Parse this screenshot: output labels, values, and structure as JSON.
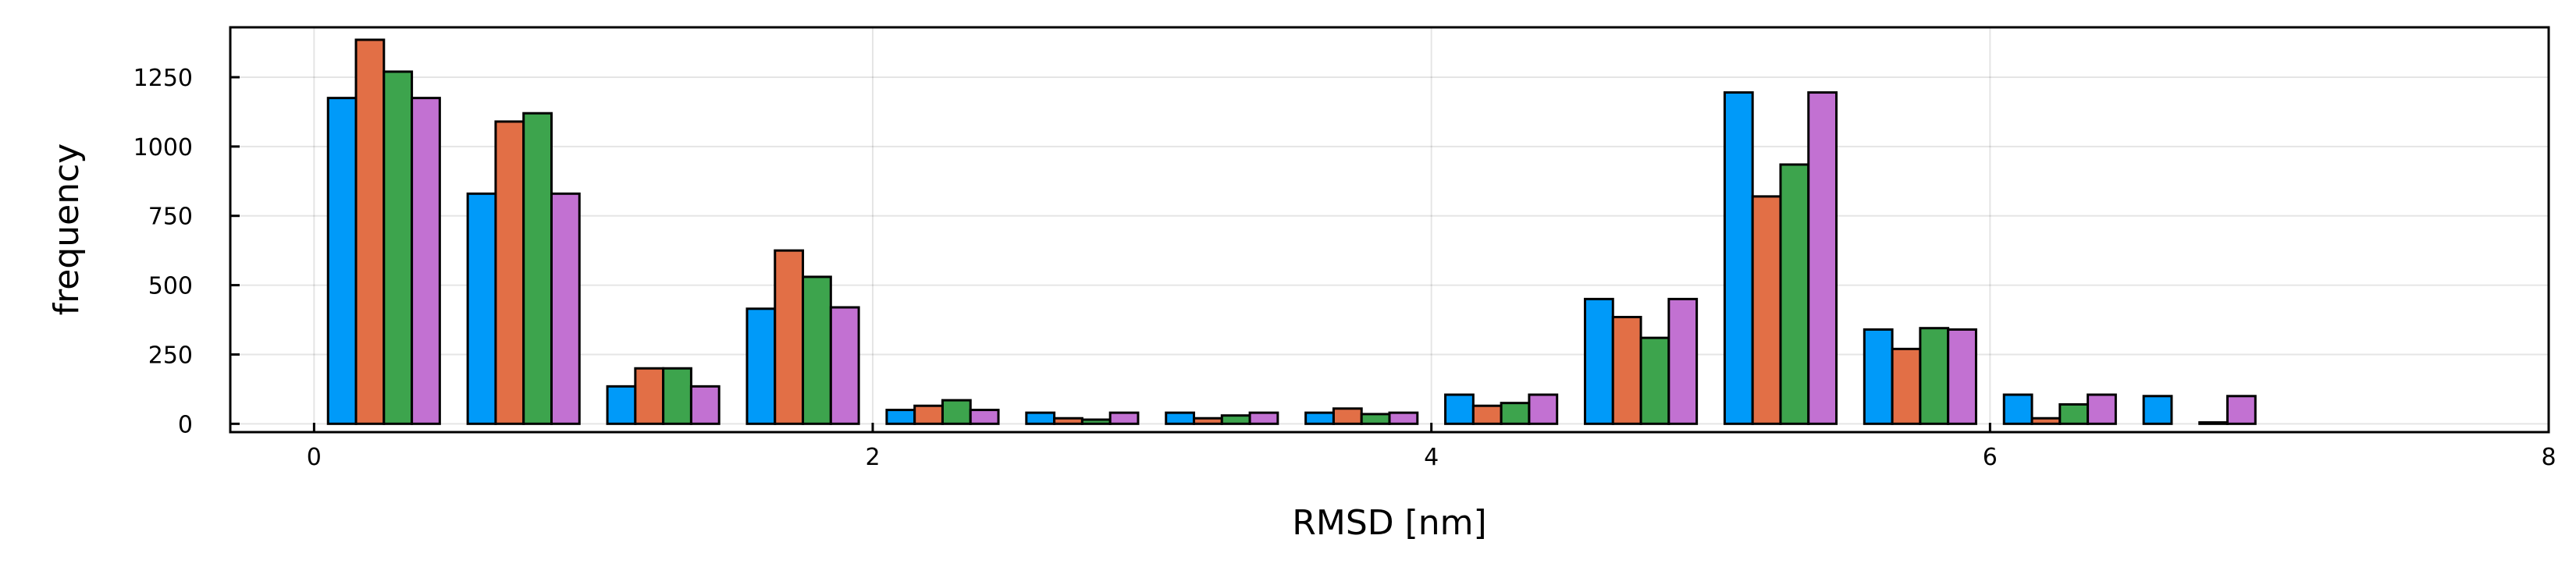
{
  "chart_data": {
    "type": "bar",
    "title": "",
    "xlabel": "RMSD [nm]",
    "ylabel": "frequency",
    "xlim": [
      -0.3,
      8
    ],
    "ylim": [
      -30,
      1430
    ],
    "xticks": [
      0,
      2,
      4,
      6,
      8
    ],
    "xtick_labels": [
      "0",
      "2",
      "4",
      "6",
      "8"
    ],
    "yticks": [
      0,
      250,
      500,
      750,
      1000,
      1250
    ],
    "ytick_labels": [
      "0",
      "250",
      "500",
      "750",
      "1000",
      "1250"
    ],
    "grid": true,
    "legend": "none",
    "bin_edges": [
      0.05,
      0.55,
      1.05,
      1.55,
      2.05,
      2.55,
      3.05,
      3.55,
      4.05,
      4.55,
      5.05,
      5.55,
      6.05,
      6.55
    ],
    "bin_width": 0.4,
    "series": [
      {
        "color": "#009af9",
        "values": [
          1175,
          830,
          135,
          415,
          50,
          40,
          40,
          40,
          105,
          450,
          1195,
          340,
          105,
          100
        ]
      },
      {
        "color": "#e26f46",
        "values": [
          1385,
          1090,
          200,
          625,
          65,
          20,
          20,
          55,
          65,
          385,
          820,
          270,
          20,
          0
        ]
      },
      {
        "color": "#3da44d",
        "values": [
          1270,
          1120,
          200,
          530,
          85,
          15,
          30,
          35,
          75,
          310,
          935,
          345,
          70,
          5
        ]
      },
      {
        "color": "#c271d2",
        "values": [
          1175,
          830,
          135,
          420,
          50,
          40,
          40,
          40,
          105,
          450,
          1195,
          340,
          105,
          100
        ]
      }
    ]
  }
}
